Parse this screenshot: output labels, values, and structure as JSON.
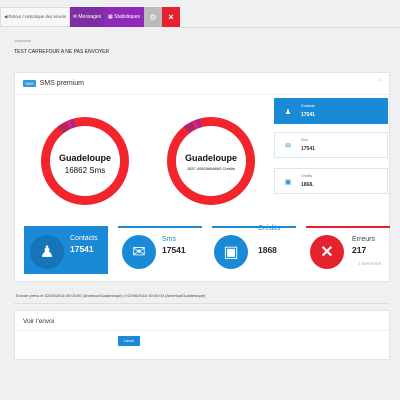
{
  "tabs": {
    "back_label": "◀ Retour / Historique des envois",
    "messages_label": "✉ Messages",
    "stats_label": "▦ Statistiques"
  },
  "header": {
    "subtitle": "Vos'envoi",
    "campaign_name": "TEST CARREFOUR A NE PAS ENVOYER"
  },
  "panel": {
    "badge": "SMS",
    "title": "SMS premium"
  },
  "donuts": [
    {
      "title": "Guadeloupe",
      "subtitle": "16862 Sms"
    },
    {
      "title": "Guadeloupe",
      "subtitle": "1837.40826666665 Crédits"
    }
  ],
  "mini_cards": [
    {
      "label": "Contacts",
      "value": "17541"
    },
    {
      "label": "Sms",
      "value": "17541"
    },
    {
      "label": "Crédits",
      "value": "1868."
    }
  ],
  "stats": [
    {
      "label": "Contacts",
      "value": "17541"
    },
    {
      "label": "Sms",
      "value": "17541"
    },
    {
      "label": "Crédits",
      "value": "1868"
    },
    {
      "label": "Erreurs",
      "value": "217"
    }
  ],
  "export_label": "⇩ EXPORTER",
  "envoi_line": "Envoie prévu le 02/06/2016 00:00:00 (America/Guadeloupe) // 02/06/2016 00:00:00 (America/Guadeloupe)",
  "voir": {
    "title": "Voir l'envoi",
    "send_button": "Lancer"
  },
  "colors": {
    "primary_blue": "#1a8ad6",
    "error_red": "#e5232e",
    "donut_red": "#f2252c",
    "purple": "#7b2fa2"
  }
}
